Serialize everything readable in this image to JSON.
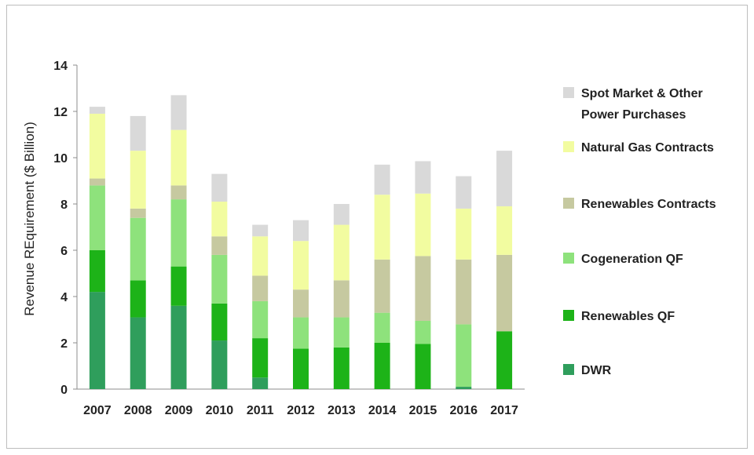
{
  "chart_data": {
    "type": "bar",
    "stacked": true,
    "title": "",
    "xlabel": "",
    "ylabel": "Revenue REquirement ($ Billion)",
    "ylim": [
      0,
      14
    ],
    "yticks": [
      0,
      2,
      4,
      6,
      8,
      10,
      12,
      14
    ],
    "grid": false,
    "legend_position": "right",
    "categories": [
      "2007",
      "2008",
      "2009",
      "2010",
      "2011",
      "2012",
      "2013",
      "2014",
      "2015",
      "2016",
      "2017"
    ],
    "series": [
      {
        "name": "DWR",
        "color": "#2f9e5c",
        "values": [
          4.2,
          3.1,
          3.6,
          2.1,
          0.5,
          0.0,
          0.0,
          0.0,
          0.0,
          0.1,
          0.0
        ]
      },
      {
        "name": "Renewables QF",
        "color": "#1db318",
        "values": [
          1.8,
          1.6,
          1.7,
          1.6,
          1.7,
          1.75,
          1.8,
          2.0,
          1.95,
          0.0,
          2.5
        ]
      },
      {
        "name": "Cogeneration QF",
        "color": "#8ee27c",
        "values": [
          2.8,
          2.7,
          2.9,
          2.1,
          1.6,
          1.35,
          1.3,
          1.3,
          1.0,
          2.7,
          0.0
        ]
      },
      {
        "name": "Renewables Contracts",
        "color": "#c6c9a0",
        "values": [
          0.3,
          0.4,
          0.6,
          0.8,
          1.1,
          1.2,
          1.6,
          2.3,
          2.8,
          2.8,
          3.3
        ]
      },
      {
        "name": "Natural Gas Contracts",
        "color": "#f2fca0",
        "values": [
          2.8,
          2.5,
          2.4,
          1.5,
          1.7,
          2.1,
          2.4,
          2.8,
          2.7,
          2.2,
          2.1
        ]
      },
      {
        "name": "Spot Market & Other Power Purchases",
        "color": "#d9d9d9",
        "values": [
          0.3,
          1.5,
          1.5,
          1.2,
          0.5,
          0.9,
          0.9,
          1.3,
          1.4,
          1.4,
          2.4
        ]
      }
    ]
  }
}
